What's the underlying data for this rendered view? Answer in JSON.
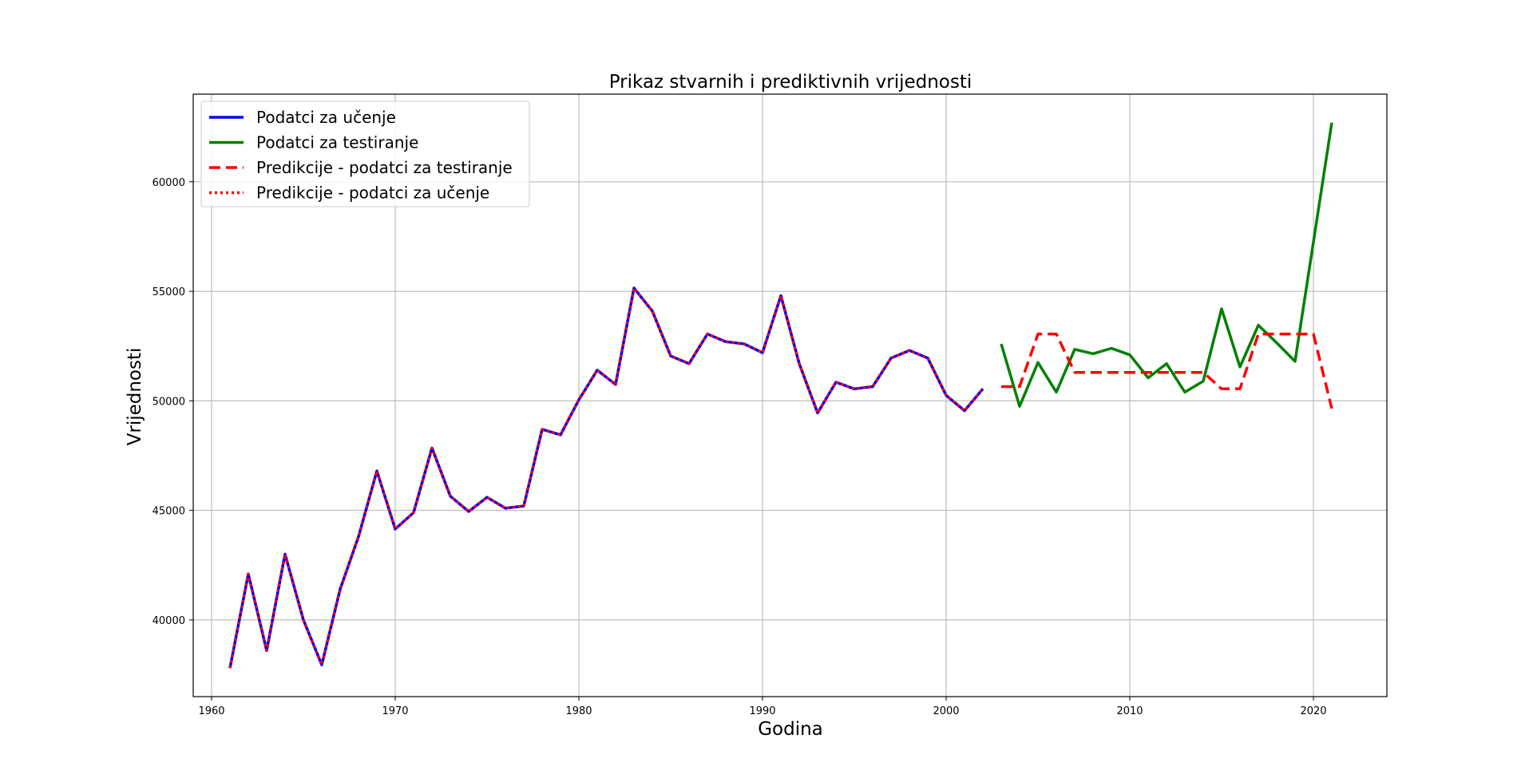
{
  "chart_data": {
    "type": "line",
    "title": "Prikaz stvarnih i prediktivnih vrijednosti",
    "xlabel": "Godina",
    "ylabel": "Vrijednosti",
    "xlim": [
      1959.0,
      2024.0
    ],
    "ylim": [
      36500,
      64000
    ],
    "xticks": [
      1960,
      1970,
      1980,
      1990,
      2000,
      2010,
      2020
    ],
    "yticks": [
      40000,
      45000,
      50000,
      55000,
      60000
    ],
    "grid": true,
    "legend_position": "top-left",
    "series": [
      {
        "name": "Podatci za učenje",
        "color": "#0000ff",
        "style": "solid",
        "x": [
          1961,
          1962,
          1963,
          1964,
          1965,
          1966,
          1967,
          1968,
          1969,
          1970,
          1971,
          1972,
          1973,
          1974,
          1975,
          1976,
          1977,
          1978,
          1979,
          1980,
          1981,
          1982,
          1983,
          1984,
          1985,
          1986,
          1987,
          1988,
          1989,
          1990,
          1991,
          1992,
          1993,
          1994,
          1995,
          1996,
          1997,
          1998,
          1999,
          2000,
          2001,
          2002
        ],
        "y": [
          37800,
          42100,
          38600,
          43000,
          40000,
          37950,
          41400,
          43800,
          46800,
          44150,
          44900,
          47850,
          45650,
          44950,
          45600,
          45100,
          45200,
          48700,
          48450,
          50050,
          51400,
          50750,
          55150,
          54100,
          52050,
          51700,
          53050,
          52700,
          52600,
          52200,
          54800,
          51700,
          49450,
          50850,
          50550,
          50650,
          51950,
          52300,
          51950,
          50250,
          49550,
          50550
        ]
      },
      {
        "name": "Podatci za testiranje",
        "color": "#008000",
        "style": "solid",
        "x": [
          2003,
          2004,
          2005,
          2006,
          2007,
          2008,
          2009,
          2010,
          2011,
          2012,
          2013,
          2014,
          2015,
          2016,
          2017,
          2018,
          2019,
          2020,
          2021
        ],
        "y": [
          52600,
          49750,
          51750,
          50400,
          52350,
          52150,
          52400,
          52100,
          51050,
          51700,
          50400,
          50900,
          54200,
          51550,
          53450,
          52650,
          51800,
          57250,
          62700
        ]
      },
      {
        "name": "Predikcije - podatci za testiranje",
        "color": "#ff0000",
        "style": "dashed",
        "x": [
          2003,
          2004,
          2005,
          2006,
          2007,
          2008,
          2009,
          2010,
          2011,
          2012,
          2013,
          2014,
          2015,
          2016,
          2017,
          2018,
          2019,
          2020,
          2021
        ],
        "y": [
          50650,
          50650,
          53050,
          53050,
          51300,
          51300,
          51300,
          51300,
          51300,
          51300,
          51300,
          51300,
          50550,
          50550,
          53050,
          53050,
          53050,
          53050,
          49650
        ]
      },
      {
        "name": "Predikcije - podatci za učenje",
        "color": "#ff0000",
        "style": "dotted",
        "x": [
          1961,
          1962,
          1963,
          1964,
          1965,
          1966,
          1967,
          1968,
          1969,
          1970,
          1971,
          1972,
          1973,
          1974,
          1975,
          1976,
          1977,
          1978,
          1979,
          1980,
          1981,
          1982,
          1983,
          1984,
          1985,
          1986,
          1987,
          1988,
          1989,
          1990,
          1991,
          1992,
          1993,
          1994,
          1995,
          1996,
          1997,
          1998,
          1999,
          2000,
          2001,
          2002
        ],
        "y": [
          37800,
          42100,
          38600,
          43000,
          40000,
          37950,
          41400,
          43800,
          46800,
          44150,
          44900,
          47850,
          45650,
          44950,
          45600,
          45100,
          45200,
          48700,
          48450,
          50050,
          51400,
          50750,
          55150,
          54100,
          52050,
          51700,
          53050,
          52700,
          52600,
          52200,
          54800,
          51700,
          49450,
          50850,
          50550,
          50650,
          51950,
          52300,
          51950,
          50250,
          49550,
          50550
        ]
      }
    ]
  }
}
